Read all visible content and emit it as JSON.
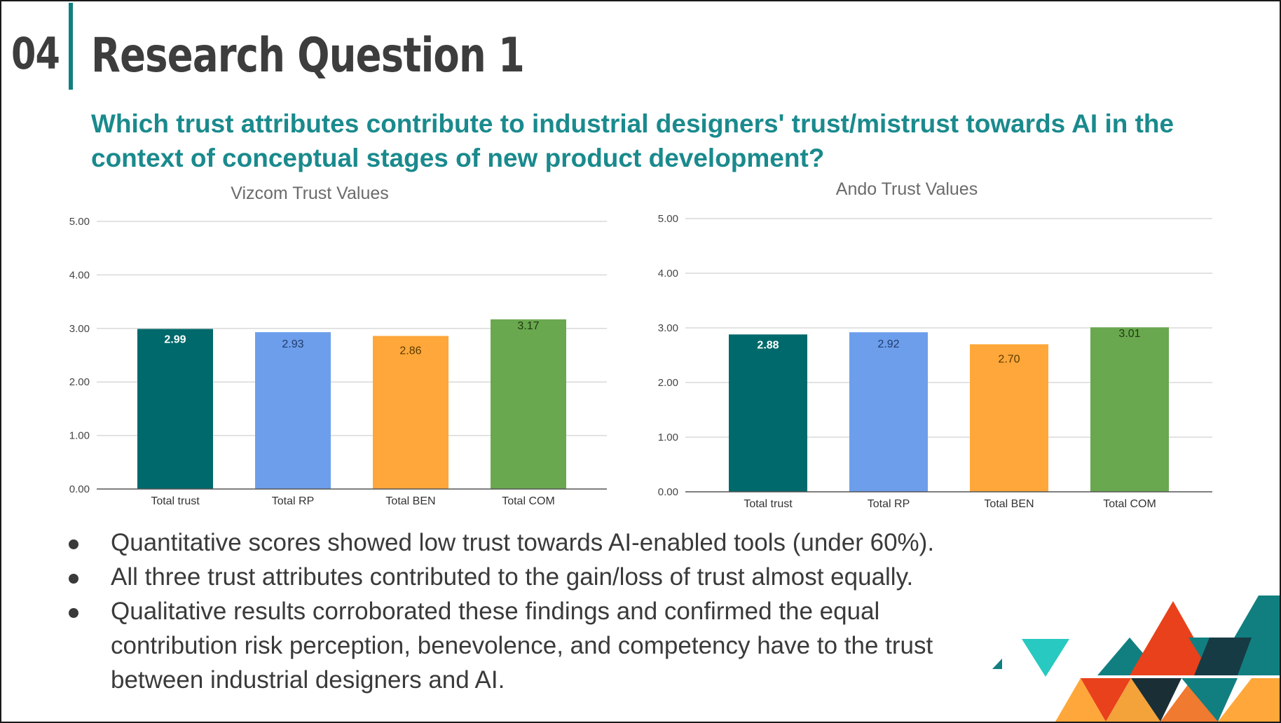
{
  "slide": {
    "section_number": "04",
    "title": "Research Question 1",
    "question": "Which trust attributes contribute to industrial designers' trust/mistrust towards AI in the context of conceptual stages of new product development?",
    "bullets": [
      "Quantitative scores showed low trust towards AI-enabled tools (under 60%).",
      "All three trust attributes contributed to the gain/loss of trust almost equally.",
      "Qualitative results corroborated these findings and confirmed the equal contribution risk perception, benevolence, and competency have to the trust between industrial designers and AI."
    ]
  },
  "colors": {
    "accent": "#117f80",
    "question": "#1a8a8d",
    "title": "#3d3d3d",
    "series": [
      "#00696b",
      "#6d9eeb",
      "#ffa73a",
      "#6aa84f"
    ],
    "label_colors": [
      "#ffffff",
      "#1f3b6e",
      "#5a3a00",
      "#1e3a10"
    ]
  },
  "chart_data": [
    {
      "type": "bar",
      "title": "Vizcom Trust Values",
      "categories": [
        "Total trust",
        "Total RP",
        "Total BEN",
        "Total COM"
      ],
      "values": [
        2.99,
        2.93,
        2.86,
        3.17
      ],
      "data_labels": [
        "2.99",
        "2.93",
        "2.86",
        "3.17"
      ],
      "ylim": [
        0,
        5
      ],
      "yticks": [
        "0.00",
        "1.00",
        "2.00",
        "3.00",
        "4.00",
        "5.00"
      ],
      "grid": true,
      "xlabel": "",
      "ylabel": ""
    },
    {
      "type": "bar",
      "title": "Ando Trust Values",
      "categories": [
        "Total trust",
        "Total RP",
        "Total BEN",
        "Total COM"
      ],
      "values": [
        2.88,
        2.92,
        2.7,
        3.01
      ],
      "data_labels": [
        "2.88",
        "2.92",
        "2.70",
        "3.01"
      ],
      "ylim": [
        0,
        5
      ],
      "yticks": [
        "0.00",
        "1.00",
        "2.00",
        "3.00",
        "4.00",
        "5.00"
      ],
      "grid": true,
      "xlabel": "",
      "ylabel": ""
    }
  ]
}
